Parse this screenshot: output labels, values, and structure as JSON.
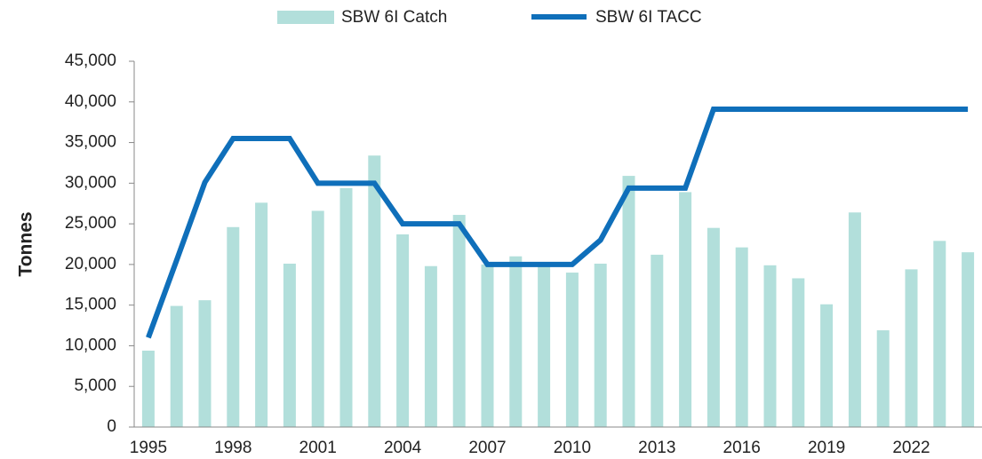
{
  "chart_data": {
    "type": "bar_line",
    "ylabel": "Tonnes",
    "categories": [
      "1995",
      null,
      null,
      "1998",
      null,
      null,
      "2001",
      null,
      null,
      "2004",
      null,
      null,
      "2007",
      null,
      null,
      "2010",
      null,
      null,
      "2013",
      null,
      null,
      "2016",
      null,
      null,
      "2019",
      null,
      null,
      "2022",
      null,
      null
    ],
    "series": [
      {
        "name": "SBW 6I Catch",
        "type": "bar",
        "color": "#b2dfdb",
        "values": [
          9400,
          14900,
          15600,
          24600,
          27600,
          20100,
          26600,
          29400,
          33400,
          23700,
          19800,
          26100,
          20000,
          21000,
          20300,
          19000,
          20100,
          30900,
          21200,
          28900,
          24500,
          22100,
          19900,
          18300,
          15100,
          26400,
          11900,
          19400,
          22900,
          21500
        ]
      },
      {
        "name": "SBW 6I TACC",
        "type": "line",
        "color": "#0f6fba",
        "values": [
          11000,
          20500,
          30100,
          35500,
          35500,
          35500,
          30000,
          30000,
          30000,
          25000,
          25000,
          25000,
          20000,
          20000,
          20000,
          20000,
          23000,
          29400,
          29400,
          29400,
          39100,
          39100,
          39100,
          39100,
          39100,
          39100,
          39100,
          39100,
          39100,
          39100
        ]
      }
    ],
    "ylim": [
      0,
      45000
    ],
    "yticks": [
      0,
      {
        "value": 5000,
        "label": "5,000"
      },
      {
        "value": 10000,
        "label": "10,000"
      },
      {
        "value": 15000,
        "label": "15,000"
      },
      {
        "value": 20000,
        "label": "20,000"
      },
      {
        "value": 25000,
        "label": "25,000"
      },
      {
        "value": 30000,
        "label": "30,000"
      },
      {
        "value": 35000,
        "label": "35,000"
      },
      {
        "value": 40000,
        "label": "40,000"
      },
      {
        "value": 45000,
        "label": "45,000"
      }
    ],
    "legend": "top"
  }
}
